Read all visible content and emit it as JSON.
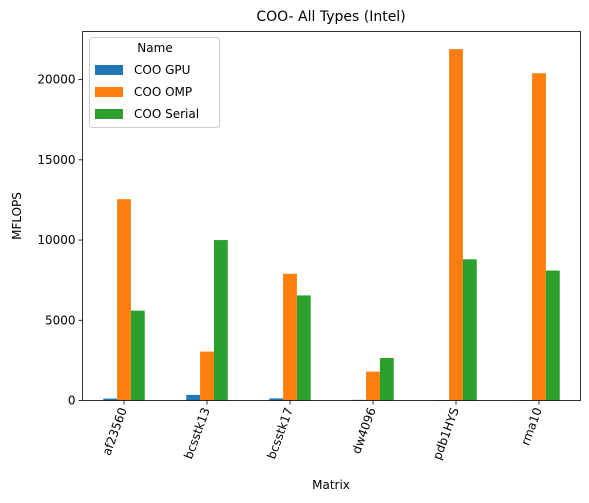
{
  "chart_data": {
    "type": "bar",
    "title": "COO- All Types (Intel)",
    "xlabel": "Matrix",
    "ylabel": "MFLOPS",
    "categories": [
      "af23560",
      "bcsstk13",
      "bcsstk17",
      "dw4096",
      "pdb1HYS",
      "rma10"
    ],
    "ylim": [
      0,
      23000
    ],
    "yticks": [
      0,
      5000,
      10000,
      15000,
      20000
    ],
    "ytick_labels": [
      "0",
      "5000",
      "10000",
      "15000",
      "20000"
    ],
    "grid": false,
    "legend": {
      "title": "Name",
      "position": "top-left"
    },
    "series": [
      {
        "name": "COO GPU",
        "color": "#1f77b4",
        "values": [
          120,
          350,
          130,
          40,
          30,
          30
        ]
      },
      {
        "name": "COO OMP",
        "color": "#ff7f0e",
        "values": [
          12550,
          3050,
          7900,
          1800,
          21900,
          20400
        ]
      },
      {
        "name": "COO Serial",
        "color": "#2ca02c",
        "values": [
          5600,
          10000,
          6550,
          2650,
          8800,
          8100
        ]
      }
    ]
  }
}
